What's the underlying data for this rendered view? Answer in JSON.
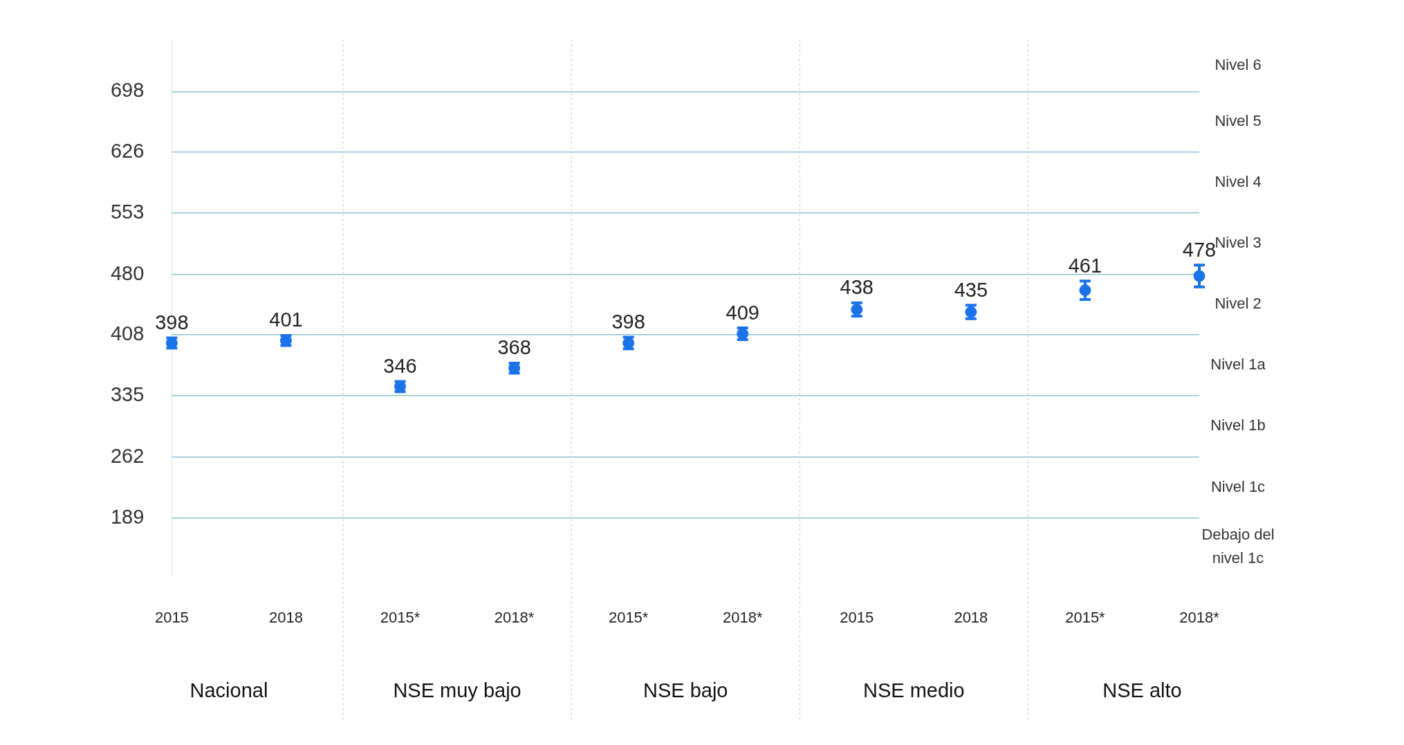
{
  "chart_data": {
    "type": "scatter",
    "categories": [
      "2015",
      "2018",
      "2015*",
      "2018*",
      "2015*",
      "2018*",
      "2015",
      "2018",
      "2015*",
      "2018*"
    ],
    "values": [
      398,
      401,
      346,
      368,
      398,
      409,
      438,
      435,
      461,
      478
    ],
    "errors": [
      6,
      6,
      6,
      6,
      7,
      7,
      8,
      8,
      11,
      13
    ],
    "color": "#1a73e8",
    "marker": "circle",
    "data_labels": true,
    "ylim": [
      120,
      760
    ],
    "yticks": [
      189,
      262,
      335,
      408,
      480,
      553,
      626,
      698
    ],
    "grid": "y",
    "legend": false,
    "annotations": [
      "Nacional",
      "NSE muy bajo",
      "NSE bajo",
      "NSE medio",
      "NSE alto",
      "Debajo del nivel 1c",
      "Nivel 1c",
      "Nivel 1b",
      "Nivel 1a",
      "Nivel 2",
      "Nivel 3",
      "Nivel 4",
      "Nivel 5",
      "Nivel 6"
    ]
  }
}
